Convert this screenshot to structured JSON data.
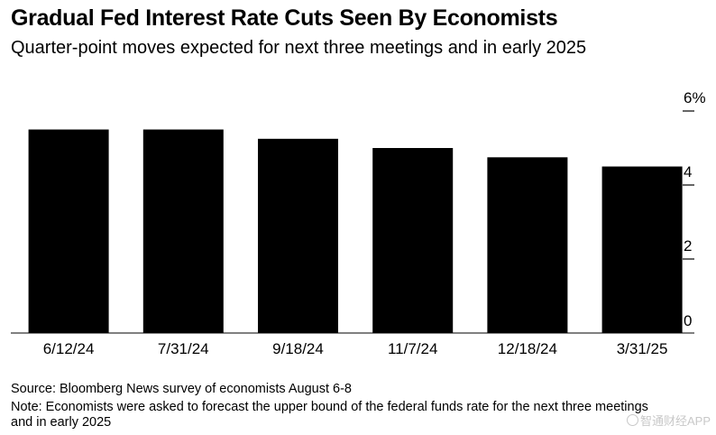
{
  "title": "Gradual Fed Interest Rate Cuts Seen By Economists",
  "subtitle": "Quarter-point moves expected for next three meetings and in early 2025",
  "chart_data": {
    "type": "bar",
    "title": "Gradual Fed Interest Rate Cuts Seen By Economists",
    "subtitle": "Quarter-point moves expected for next three meetings and in early 2025",
    "categories": [
      "6/12/24",
      "7/31/24",
      "9/18/24",
      "11/7/24",
      "12/18/24",
      "3/31/25"
    ],
    "values": [
      5.5,
      5.5,
      5.25,
      5.0,
      4.75,
      4.5
    ],
    "xlabel": "",
    "ylabel": "",
    "ylim": [
      0,
      6
    ],
    "yticks": [
      0,
      2,
      4,
      6
    ],
    "ytick_labels": [
      "0",
      "2",
      "4",
      "6%"
    ],
    "yaxis_position": "right",
    "grid": false,
    "bar_color": "#000000"
  },
  "source": "Source: Bloomberg News survey of economists August 6-8",
  "note": "Note: Economists were asked to forecast the upper bound of the federal funds rate for the next three meetings and in early 2025",
  "watermark": "智通财经APP"
}
